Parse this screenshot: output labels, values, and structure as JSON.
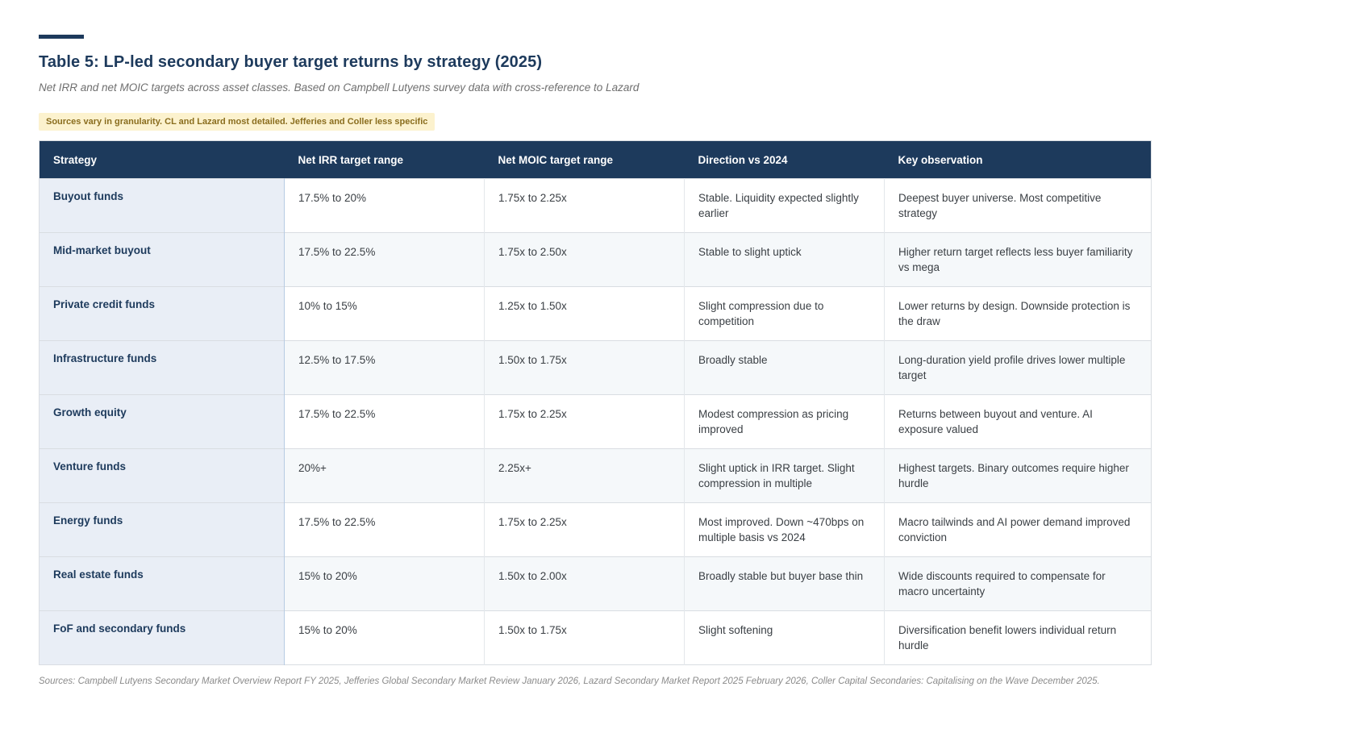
{
  "header": {
    "title": "Table 5: LP-led secondary buyer target returns by strategy (2025)",
    "subtitle": "Net IRR and net MOIC targets across asset classes. Based on Campbell Lutyens survey data with cross-reference to Lazard",
    "badge": "Sources vary in granularity. CL and Lazard most detailed. Jefferies and Coller less specific"
  },
  "table": {
    "columns": [
      "Strategy",
      "Net IRR target range",
      "Net MOIC target range",
      "Direction vs 2024",
      "Key observation"
    ],
    "rows": [
      {
        "strategy": "Buyout funds",
        "irr": "17.5% to 20%",
        "moic": "1.75x to 2.25x",
        "direction": "Stable. Liquidity expected slightly earlier",
        "observation": "Deepest buyer universe. Most competitive strategy"
      },
      {
        "strategy": "Mid-market buyout",
        "irr": "17.5% to 22.5%",
        "moic": "1.75x to 2.50x",
        "direction": "Stable to slight uptick",
        "observation": "Higher return target reflects less buyer familiarity vs mega"
      },
      {
        "strategy": "Private credit funds",
        "irr": "10% to 15%",
        "moic": "1.25x to 1.50x",
        "direction": "Slight compression due to competition",
        "observation": "Lower returns by design. Downside protection is the draw"
      },
      {
        "strategy": "Infrastructure funds",
        "irr": "12.5% to 17.5%",
        "moic": "1.50x to 1.75x",
        "direction": "Broadly stable",
        "observation": "Long-duration yield profile drives lower multiple target"
      },
      {
        "strategy": "Growth equity",
        "irr": "17.5% to 22.5%",
        "moic": "1.75x to 2.25x",
        "direction": "Modest compression as pricing improved",
        "observation": "Returns between buyout and venture. AI exposure valued"
      },
      {
        "strategy": "Venture funds",
        "irr": "20%+",
        "moic": "2.25x+",
        "direction": "Slight uptick in IRR target. Slight compression in multiple",
        "observation": "Highest targets. Binary outcomes require higher hurdle"
      },
      {
        "strategy": "Energy funds",
        "irr": "17.5% to 22.5%",
        "moic": "1.75x to 2.25x",
        "direction": "Most improved. Down ~470bps on multiple basis vs 2024",
        "observation": "Macro tailwinds and AI power demand improved conviction"
      },
      {
        "strategy": "Real estate funds",
        "irr": "15% to 20%",
        "moic": "1.50x to 2.00x",
        "direction": "Broadly stable but buyer base thin",
        "observation": "Wide discounts required to compensate for macro uncertainty"
      },
      {
        "strategy": "FoF and secondary funds",
        "irr": "15% to 20%",
        "moic": "1.50x to 1.75x",
        "direction": "Slight softening",
        "observation": "Diversification benefit lowers individual return hurdle"
      }
    ]
  },
  "footer": {
    "sources": "Sources: Campbell Lutyens Secondary Market Overview Report FY 2025, Jefferies Global Secondary Market Review January 2026, Lazard Secondary Market Report 2025 February 2026, Coller Capital Secondaries: Capitalising on the Wave December 2025."
  },
  "colors": {
    "accent_navy": "#1d3a5c",
    "header_bg": "#1d3a5c",
    "strategy_col_bg": "#e9eef6",
    "row_stripe_bg": "#f5f8fa",
    "badge_bg": "#fcf2ce",
    "badge_text": "#8a6d1e"
  }
}
